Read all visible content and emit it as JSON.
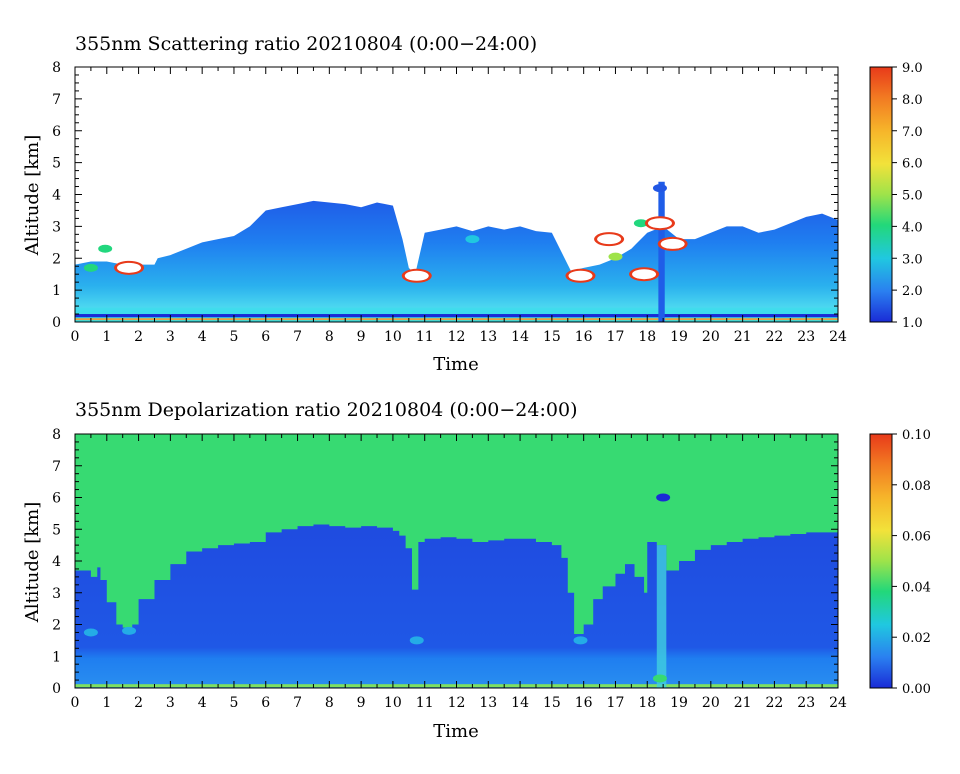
{
  "chart_data": [
    {
      "type": "heatmap",
      "title": "355nm Scattering ratio  20210804 (0:00−24:00)",
      "xlabel": "Time",
      "ylabel": "Altitude [km]",
      "xlim": [
        0,
        24
      ],
      "ylim": [
        0,
        8
      ],
      "x_ticks": [
        "0",
        "1",
        "2",
        "3",
        "4",
        "5",
        "6",
        "7",
        "8",
        "9",
        "10",
        "11",
        "12",
        "13",
        "14",
        "15",
        "16",
        "17",
        "18",
        "19",
        "20",
        "21",
        "22",
        "23",
        "24"
      ],
      "y_ticks": [
        "0",
        "1",
        "2",
        "3",
        "4",
        "5",
        "6",
        "7",
        "8"
      ],
      "colorbar": {
        "min": 1.0,
        "max": 9.0,
        "ticks": [
          "1.0",
          "2.0",
          "3.0",
          "4.0",
          "5.0",
          "6.0",
          "7.0",
          "8.0",
          "9.0"
        ]
      },
      "cloud_top_km": {
        "x": [
          0,
          0.5,
          1,
          1.5,
          2,
          2.5,
          2.6,
          3,
          3.5,
          4,
          4.5,
          5,
          5.5,
          6,
          6.5,
          7,
          7.5,
          8,
          8.5,
          9,
          9.5,
          10,
          10.3,
          10.5,
          10.7,
          11,
          11.5,
          12,
          12.5,
          13,
          13.5,
          14,
          14.5,
          15,
          15.4,
          15.6,
          16,
          16.5,
          17,
          17.5,
          18,
          18.5,
          19,
          19.5,
          20,
          20.5,
          21,
          21.5,
          22,
          22.5,
          23,
          23.5,
          24
        ],
        "y": [
          1.8,
          1.9,
          1.9,
          1.8,
          1.8,
          1.8,
          2.0,
          2.1,
          2.3,
          2.5,
          2.6,
          2.7,
          3.0,
          3.5,
          3.6,
          3.7,
          3.8,
          3.75,
          3.7,
          3.6,
          3.75,
          3.65,
          2.6,
          1.7,
          1.5,
          2.8,
          2.9,
          3.0,
          2.85,
          3.0,
          2.9,
          3.0,
          2.85,
          2.8,
          2.0,
          1.6,
          1.7,
          1.8,
          2.0,
          2.3,
          2.8,
          3.0,
          2.6,
          2.6,
          2.8,
          3.0,
          3.0,
          2.8,
          2.9,
          3.1,
          3.3,
          3.4,
          3.2
        ]
      },
      "features": [
        {
          "x": 0.5,
          "y": 1.7,
          "value": 4.0
        },
        {
          "x": 0.95,
          "y": 2.3,
          "value": 4.0
        },
        {
          "x": 1.7,
          "y": 1.7,
          "value": 9.0
        },
        {
          "x": 10.75,
          "y": 1.45,
          "value": 9.0
        },
        {
          "x": 12.5,
          "y": 2.6,
          "value": 3.0
        },
        {
          "x": 15.9,
          "y": 1.45,
          "value": 9.0
        },
        {
          "x": 16.8,
          "y": 2.6,
          "value": 9.0
        },
        {
          "x": 17.0,
          "y": 2.05,
          "value": 5.0
        },
        {
          "x": 17.9,
          "y": 1.5,
          "value": 9.0
        },
        {
          "x": 17.8,
          "y": 3.1,
          "value": 4.0
        },
        {
          "x": 18.4,
          "y": 3.1,
          "value": 9.0
        },
        {
          "x": 18.8,
          "y": 2.45,
          "value": 9.0
        },
        {
          "x": 18.4,
          "y": 4.2,
          "value": 1.5
        }
      ]
    },
    {
      "type": "heatmap",
      "title": "355nm Depolarization ratio  20210804 (0:00−24:00)",
      "xlabel": "Time",
      "ylabel": "Altitude [km]",
      "xlim": [
        0,
        24
      ],
      "ylim": [
        0,
        8
      ],
      "x_ticks": [
        "0",
        "1",
        "2",
        "3",
        "4",
        "5",
        "6",
        "7",
        "8",
        "9",
        "10",
        "11",
        "12",
        "13",
        "14",
        "15",
        "16",
        "17",
        "18",
        "19",
        "20",
        "21",
        "22",
        "23",
        "24"
      ],
      "y_ticks": [
        "0",
        "1",
        "2",
        "3",
        "4",
        "5",
        "6",
        "7",
        "8"
      ],
      "colorbar": {
        "min": 0.0,
        "max": 0.1,
        "ticks": [
          "0.00",
          "0.02",
          "0.04",
          "0.06",
          "0.08",
          "0.10"
        ]
      },
      "background_value": 0.04,
      "low_region_top_km": {
        "x": [
          0,
          0.5,
          0.7,
          0.8,
          1,
          1.3,
          1.5,
          1.8,
          2,
          2.5,
          3,
          3.5,
          4,
          4.5,
          5,
          5.5,
          6,
          6.5,
          7,
          7.5,
          8,
          8.5,
          9,
          9.5,
          10,
          10.2,
          10.4,
          10.6,
          10.8,
          11,
          11.5,
          12,
          12.5,
          13,
          13.5,
          14,
          14.5,
          15,
          15.3,
          15.5,
          15.7,
          16,
          16.3,
          16.6,
          17,
          17.3,
          17.6,
          17.9,
          18,
          18.3,
          18.6,
          19,
          19.5,
          20,
          20.5,
          21,
          21.5,
          22,
          22.5,
          23,
          23.5,
          24
        ],
        "y": [
          3.7,
          3.5,
          3.8,
          3.4,
          2.7,
          2.0,
          1.9,
          2.0,
          2.8,
          3.4,
          3.9,
          4.3,
          4.4,
          4.5,
          4.55,
          4.6,
          4.9,
          5.0,
          5.1,
          5.15,
          5.1,
          5.05,
          5.1,
          5.05,
          4.95,
          4.8,
          4.4,
          3.1,
          4.6,
          4.7,
          4.75,
          4.7,
          4.6,
          4.65,
          4.7,
          4.7,
          4.6,
          4.5,
          4.1,
          3.0,
          1.7,
          2.0,
          2.8,
          3.2,
          3.6,
          3.9,
          3.5,
          3.0,
          4.6,
          4.5,
          3.7,
          4.0,
          4.35,
          4.5,
          4.6,
          4.7,
          4.75,
          4.8,
          4.85,
          4.9,
          4.9,
          4.85
        ]
      },
      "features": [
        {
          "x": 0.5,
          "y": 1.75,
          "value": 0.02
        },
        {
          "x": 1.7,
          "y": 1.8,
          "value": 0.02
        },
        {
          "x": 10.75,
          "y": 1.5,
          "value": 0.02
        },
        {
          "x": 15.9,
          "y": 1.5,
          "value": 0.02
        },
        {
          "x": 18.5,
          "y": 6.0,
          "value": 0.0
        },
        {
          "x": 18.4,
          "y": 0.3,
          "value": 0.04
        }
      ]
    }
  ]
}
